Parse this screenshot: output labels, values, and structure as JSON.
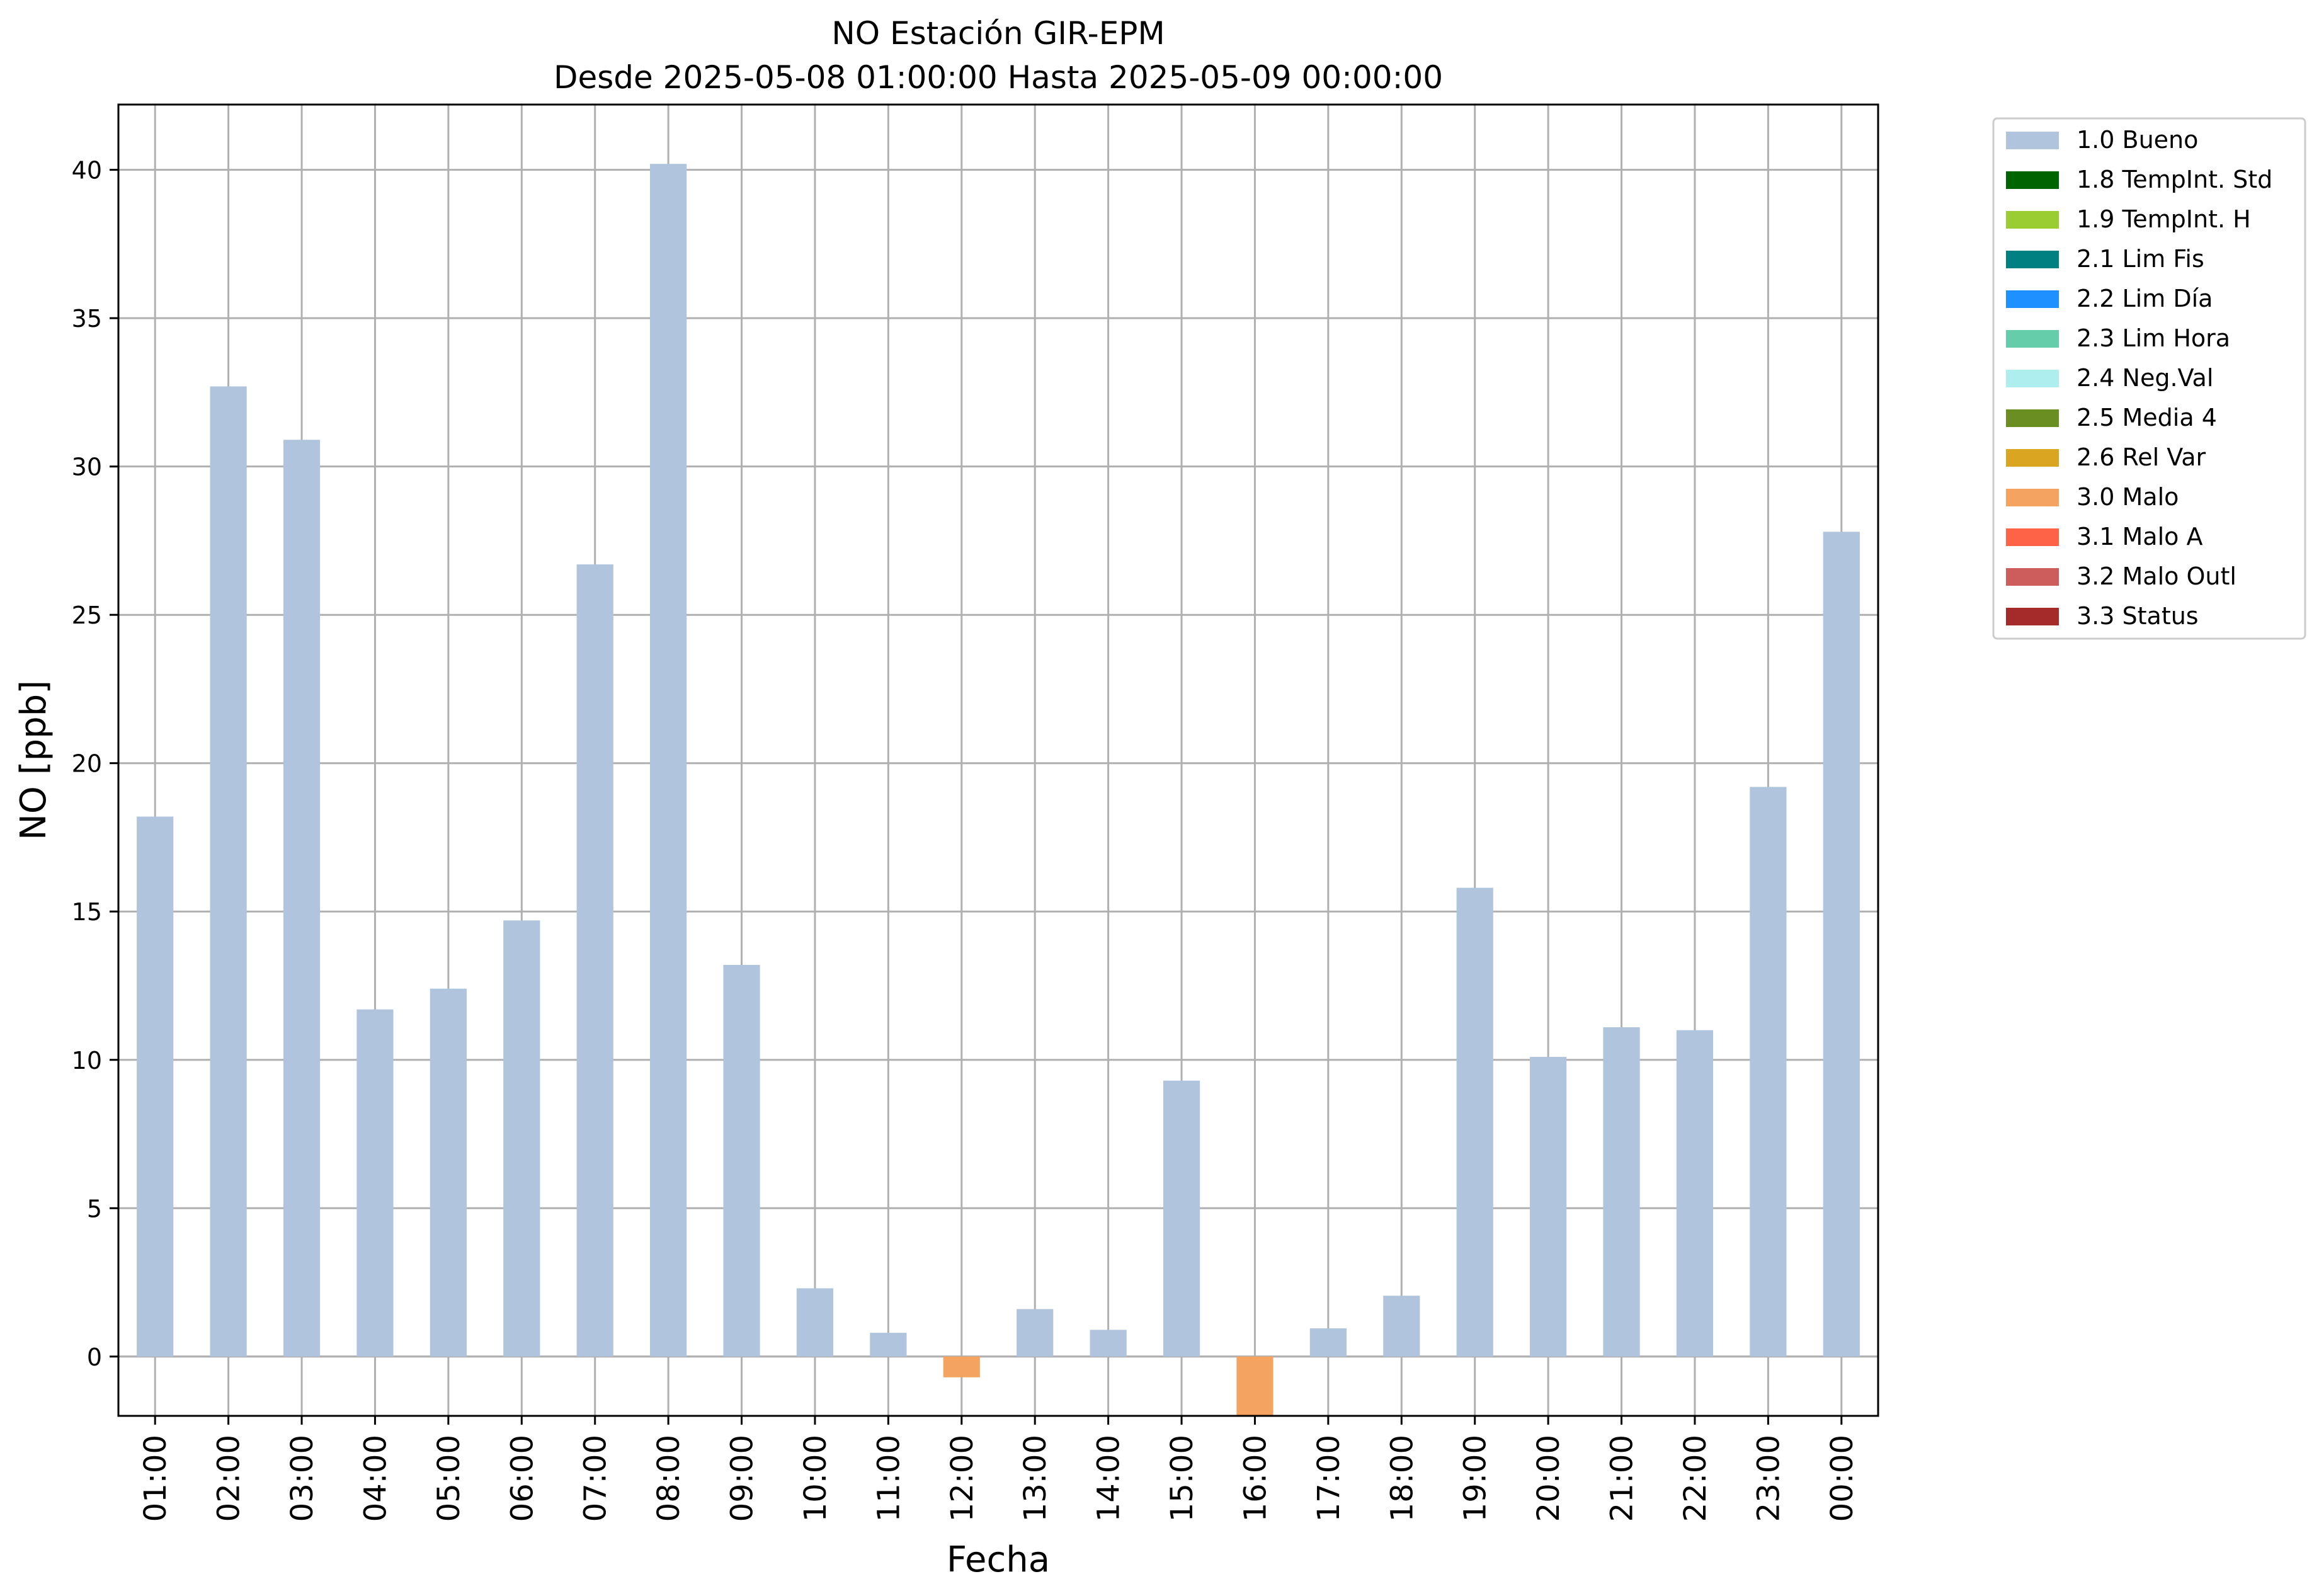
{
  "chart_data": {
    "type": "bar",
    "title": "NO Estación GIR-EPM",
    "subtitle": "Desde 2025-05-08 01:00:00 Hasta 2025-05-09 00:00:00",
    "xlabel": "Fecha",
    "ylabel": "NO [ppb]",
    "ylim": [
      -2.0,
      42.2
    ],
    "yticks": [
      "0",
      "5",
      "10",
      "15",
      "20",
      "25",
      "30",
      "35",
      "40"
    ],
    "grid": true,
    "legend_position": "outside-top-right",
    "categories": [
      "01:00",
      "02:00",
      "03:00",
      "04:00",
      "05:00",
      "06:00",
      "07:00",
      "08:00",
      "09:00",
      "10:00",
      "11:00",
      "12:00",
      "13:00",
      "14:00",
      "15:00",
      "16:00",
      "17:00",
      "18:00",
      "19:00",
      "20:00",
      "21:00",
      "22:00",
      "23:00",
      "00:00"
    ],
    "values": [
      18.2,
      32.7,
      30.9,
      11.7,
      12.4,
      14.7,
      26.7,
      40.2,
      13.2,
      2.3,
      0.8,
      -0.7,
      1.6,
      0.9,
      9.3,
      -2.1,
      0.95,
      2.05,
      15.8,
      10.1,
      11.1,
      11.0,
      19.2,
      27.8
    ],
    "flags": [
      "1.0 Bueno",
      "1.0 Bueno",
      "1.0 Bueno",
      "1.0 Bueno",
      "1.0 Bueno",
      "1.0 Bueno",
      "1.0 Bueno",
      "1.0 Bueno",
      "1.0 Bueno",
      "1.0 Bueno",
      "1.0 Bueno",
      "3.0 Malo",
      "1.0 Bueno",
      "1.0 Bueno",
      "1.0 Bueno",
      "3.0 Malo",
      "1.0 Bueno",
      "1.0 Bueno",
      "1.0 Bueno",
      "1.0 Bueno",
      "1.0 Bueno",
      "1.0 Bueno",
      "1.0 Bueno",
      "1.0 Bueno"
    ],
    "legend": [
      {
        "label": "1.0 Bueno",
        "color": "#b0c4de"
      },
      {
        "label": "1.8 TempInt. Std",
        "color": "#006400"
      },
      {
        "label": "1.9 TempInt. H",
        "color": "#9acd32"
      },
      {
        "label": "2.1 Lim Fis",
        "color": "#008080"
      },
      {
        "label": "2.2 Lim Día",
        "color": "#1e90ff"
      },
      {
        "label": "2.3 Lim Hora",
        "color": "#66cdaa"
      },
      {
        "label": "2.4 Neg.Val",
        "color": "#afeeee"
      },
      {
        "label": "2.5 Media 4",
        "color": "#6b8e23"
      },
      {
        "label": "2.6 Rel Var",
        "color": "#daa520"
      },
      {
        "label": "3.0 Malo",
        "color": "#f4a460"
      },
      {
        "label": "3.1 Malo A",
        "color": "#ff6347"
      },
      {
        "label": "3.2 Malo Outl",
        "color": "#cd5c5c"
      },
      {
        "label": "3.3 Status",
        "color": "#a52a2a"
      }
    ]
  }
}
